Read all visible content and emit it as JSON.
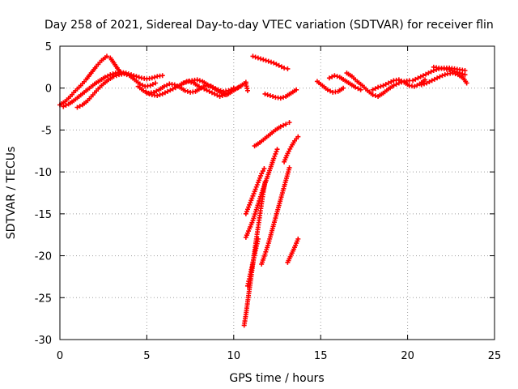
{
  "chart_data": {
    "type": "scatter",
    "title": "Day 258 of 2021, Sidereal Day-to-day VTEC variation (SDTVAR) for receiver flin",
    "xlabel": "GPS time / hours",
    "ylabel": "SDTVAR / TECUs",
    "xlim": [
      0,
      25
    ],
    "ylim": [
      -30,
      5
    ],
    "xticks": [
      0,
      5,
      10,
      15,
      20,
      25
    ],
    "yticks": [
      -30,
      -25,
      -20,
      -15,
      -10,
      -5,
      0,
      5
    ],
    "grid": true,
    "marker": "plus",
    "color": "#ff0000",
    "tracks": [
      {
        "x": [
          0.0,
          0.3,
          0.6,
          0.9,
          1.2,
          1.5,
          1.8,
          2.1,
          2.4,
          2.7,
          2.9,
          3.1,
          3.3,
          3.5
        ],
        "y": [
          -2.0,
          -1.6,
          -1.0,
          -0.3,
          0.3,
          1.0,
          1.8,
          2.6,
          3.3,
          3.8,
          3.6,
          3.0,
          2.4,
          1.8
        ]
      },
      {
        "x": [
          0.2,
          0.5,
          0.8,
          1.1,
          1.4,
          1.7,
          2.0,
          2.3,
          2.6,
          2.9,
          3.2,
          3.5,
          3.8,
          4.1,
          4.4,
          4.7,
          5.0,
          5.3,
          5.6,
          5.9
        ],
        "y": [
          -2.2,
          -1.9,
          -1.5,
          -1.0,
          -0.5,
          0.0,
          0.5,
          0.9,
          1.3,
          1.6,
          1.8,
          1.9,
          1.8,
          1.6,
          1.4,
          1.2,
          1.1,
          1.2,
          1.4,
          1.5
        ]
      },
      {
        "x": [
          1.0,
          1.3,
          1.6,
          1.9,
          2.2,
          2.5,
          2.8,
          3.1,
          3.4,
          3.7,
          4.0,
          4.3,
          4.6,
          4.9,
          5.2,
          5.5
        ],
        "y": [
          -2.3,
          -2.0,
          -1.5,
          -0.8,
          -0.1,
          0.5,
          1.0,
          1.4,
          1.6,
          1.7,
          1.5,
          1.0,
          0.5,
          0.2,
          0.3,
          0.6
        ]
      },
      {
        "x": [
          4.5,
          4.8,
          5.1,
          5.4,
          5.7,
          6.0,
          6.3,
          6.6,
          6.9,
          7.2,
          7.5,
          7.8,
          8.1,
          8.4,
          8.7,
          9.0,
          9.3,
          9.6,
          9.9,
          10.2,
          10.5,
          10.7
        ],
        "y": [
          0.2,
          -0.3,
          -0.6,
          -0.5,
          -0.2,
          0.2,
          0.5,
          0.4,
          0.1,
          -0.3,
          -0.5,
          -0.4,
          0.0,
          0.3,
          0.2,
          -0.2,
          -0.6,
          -0.8,
          -0.4,
          0.0,
          0.4,
          0.7
        ]
      },
      {
        "x": [
          5.0,
          5.3,
          5.6,
          5.9,
          6.2,
          6.5,
          6.8,
          7.1,
          7.4,
          7.7,
          8.0,
          8.3,
          8.6,
          8.9,
          9.2,
          9.5,
          9.8,
          10.1,
          10.4
        ],
        "y": [
          -0.6,
          -0.8,
          -0.9,
          -0.7,
          -0.4,
          -0.1,
          0.2,
          0.6,
          0.8,
          0.6,
          0.2,
          -0.1,
          -0.4,
          -0.7,
          -1.0,
          -0.8,
          -0.5,
          -0.1,
          0.2
        ]
      },
      {
        "x": [
          7.0,
          7.3,
          7.6,
          7.9,
          8.2,
          8.5,
          8.8,
          9.1,
          9.4,
          9.7,
          10.0
        ],
        "y": [
          0.5,
          0.8,
          0.9,
          1.0,
          0.8,
          0.4,
          0.1,
          -0.2,
          -0.4,
          -0.3,
          0.0
        ]
      },
      {
        "x": [
          11.1,
          11.4,
          11.7,
          12.0,
          12.3,
          12.6,
          12.9,
          13.1
        ],
        "y": [
          3.8,
          3.6,
          3.4,
          3.2,
          3.0,
          2.7,
          2.4,
          2.3
        ]
      },
      {
        "x": [
          10.7,
          10.8
        ],
        "y": [
          0.5,
          -0.3
        ]
      },
      {
        "x": [
          11.8,
          12.1,
          12.4,
          12.7,
          13.0,
          13.3,
          13.6
        ],
        "y": [
          -0.7,
          -0.9,
          -1.1,
          -1.2,
          -1.0,
          -0.6,
          -0.2
        ]
      },
      {
        "x": [
          11.2,
          11.5,
          11.8,
          12.1,
          12.4,
          12.7,
          13.0,
          13.2
        ],
        "y": [
          -6.9,
          -6.5,
          -6.0,
          -5.5,
          -5.0,
          -4.6,
          -4.3,
          -4.1
        ]
      },
      {
        "x": [
          10.6,
          10.7,
          10.8,
          10.9,
          11.0,
          11.1,
          11.2,
          11.3,
          11.4,
          11.5,
          11.6,
          11.7,
          11.8
        ],
        "y": [
          -28.3,
          -27.0,
          -25.5,
          -24.0,
          -22.5,
          -21.0,
          -19.5,
          -18.0,
          -16.6,
          -15.2,
          -13.8,
          -12.4,
          -11.2
        ]
      },
      {
        "x": [
          10.7,
          10.9,
          11.1,
          11.3,
          11.5,
          11.7,
          11.9,
          12.1,
          12.3,
          12.5
        ],
        "y": [
          -17.8,
          -16.8,
          -15.8,
          -14.5,
          -13.2,
          -12.0,
          -10.8,
          -9.6,
          -8.4,
          -7.3
        ]
      },
      {
        "x": [
          10.7,
          10.85,
          11.0,
          11.15,
          11.3,
          11.45,
          11.6,
          11.75
        ],
        "y": [
          -15.0,
          -14.2,
          -13.4,
          -12.6,
          -11.8,
          -11.0,
          -10.2,
          -9.6
        ]
      },
      {
        "x": [
          10.8,
          10.95,
          11.1,
          11.25,
          11.4
        ],
        "y": [
          -23.6,
          -22.2,
          -20.8,
          -19.4,
          -18.0
        ]
      },
      {
        "x": [
          11.6,
          11.8,
          12.0,
          12.2,
          12.4,
          12.6,
          12.8,
          13.0,
          13.2
        ],
        "y": [
          -21.0,
          -19.8,
          -18.5,
          -17.0,
          -15.5,
          -14.0,
          -12.5,
          -11.0,
          -9.5
        ]
      },
      {
        "x": [
          12.9,
          13.1,
          13.3,
          13.5,
          13.7
        ],
        "y": [
          -8.8,
          -7.8,
          -7.0,
          -6.3,
          -5.8
        ]
      },
      {
        "x": [
          13.1,
          13.3,
          13.5,
          13.7
        ],
        "y": [
          -20.8,
          -19.9,
          -19.0,
          -18.0
        ]
      },
      {
        "x": [
          14.8,
          15.1,
          15.4,
          15.7,
          16.0,
          16.3
        ],
        "y": [
          0.8,
          0.3,
          -0.2,
          -0.5,
          -0.4,
          0.0
        ]
      },
      {
        "x": [
          15.5,
          15.8,
          16.1,
          16.4,
          16.7,
          17.0,
          17.3
        ],
        "y": [
          1.2,
          1.5,
          1.3,
          0.9,
          0.5,
          0.1,
          -0.2
        ]
      },
      {
        "x": [
          16.5,
          16.8,
          17.1,
          17.4,
          17.7,
          18.0,
          18.3,
          18.6,
          18.9,
          19.2,
          19.5,
          19.8,
          20.1
        ],
        "y": [
          1.8,
          1.4,
          0.8,
          0.3,
          -0.3,
          -0.8,
          -1.0,
          -0.6,
          -0.1,
          0.3,
          0.6,
          0.8,
          0.9
        ]
      },
      {
        "x": [
          18.0,
          18.3,
          18.6,
          18.9,
          19.2,
          19.5,
          19.8,
          20.1,
          20.4,
          20.7,
          21.0
        ],
        "y": [
          -0.2,
          0.1,
          0.3,
          0.6,
          0.9,
          1.0,
          0.7,
          0.3,
          0.2,
          0.5,
          1.0
        ]
      },
      {
        "x": [
          20.3,
          20.6,
          20.9,
          21.2,
          21.5,
          21.8,
          22.1,
          22.4,
          22.7,
          23.0,
          23.3
        ],
        "y": [
          0.9,
          1.2,
          1.5,
          1.8,
          2.1,
          2.3,
          2.4,
          2.4,
          2.3,
          2.2,
          2.1
        ]
      },
      {
        "x": [
          20.8,
          21.1,
          21.4,
          21.7,
          22.0,
          22.3,
          22.6,
          22.9,
          23.2,
          23.4
        ],
        "y": [
          0.4,
          0.6,
          0.9,
          1.2,
          1.5,
          1.7,
          1.8,
          1.6,
          1.2,
          0.6
        ]
      },
      {
        "x": [
          21.5,
          21.8,
          22.1,
          22.4,
          22.7,
          23.0,
          23.3
        ],
        "y": [
          2.5,
          2.4,
          2.3,
          2.2,
          2.0,
          1.8,
          1.6
        ]
      }
    ]
  }
}
